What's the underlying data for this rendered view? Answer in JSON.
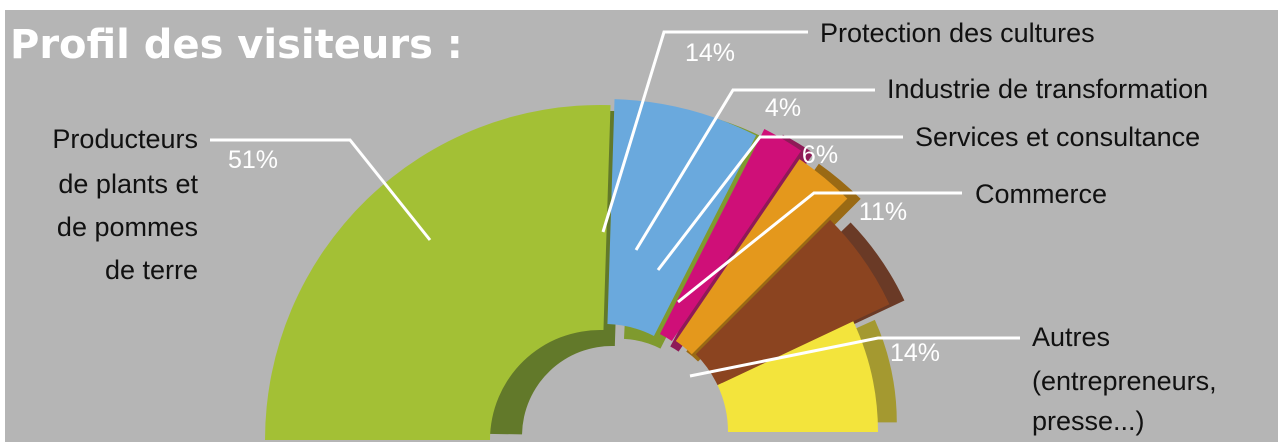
{
  "title": "Profil des visiteurs :",
  "chart_data": {
    "type": "pie",
    "title": "Profil des visiteurs :",
    "units": "%",
    "slices": [
      {
        "label": "Producteurs de plants et de pommes de terre",
        "label_lines": [
          "Producteurs",
          "de plants et",
          "de pommes",
          "de terre"
        ],
        "value": 51,
        "value_label": "51%",
        "color": "#a3c035",
        "side_color": "#62792a"
      },
      {
        "label": "Protection des cultures",
        "label_lines": [
          "Protection des cultures"
        ],
        "value": 14,
        "value_label": "14%",
        "color": "#6aa9dd",
        "side_color": "#7f9a2e"
      },
      {
        "label": "Industrie de transformation",
        "label_lines": [
          "Industrie de transformation"
        ],
        "value": 4,
        "value_label": "4%",
        "color": "#cf0f78",
        "side_color": "#8e1a57"
      },
      {
        "label": "Services et consultance",
        "label_lines": [
          "Services et consultance"
        ],
        "value": 6,
        "value_label": "6%",
        "color": "#e4981c",
        "side_color": "#9a6a14"
      },
      {
        "label": "Commerce",
        "label_lines": [
          "Commerce"
        ],
        "value": 11,
        "value_label": "11%",
        "color": "#8b4420",
        "side_color": "#6a3a26"
      },
      {
        "label": "Autres (entrepreneurs, presse...)",
        "label_lines": [
          "Autres",
          "(entrepreneurs,",
          "presse...)"
        ],
        "value": 14,
        "value_label": "14%",
        "color": "#f3e43c",
        "side_color": "#a49930"
      }
    ]
  }
}
